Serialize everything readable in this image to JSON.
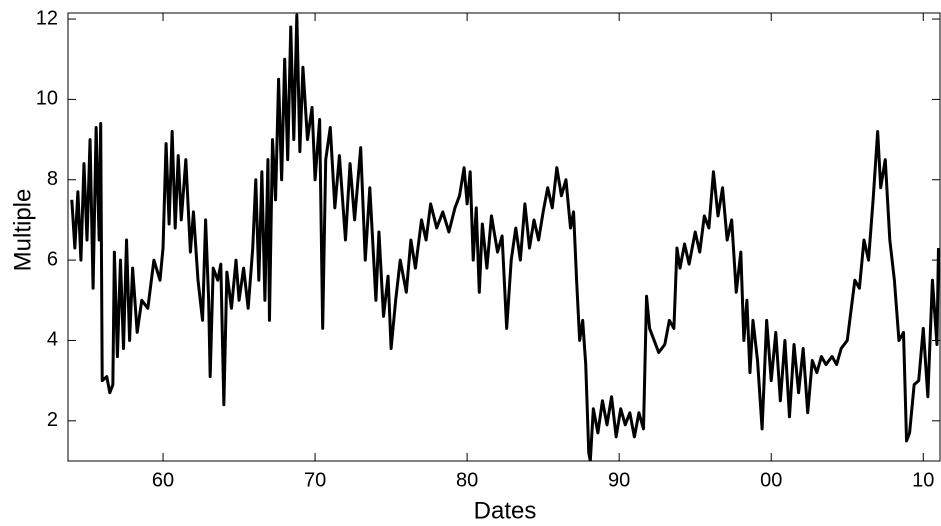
{
  "chart_data": {
    "type": "line",
    "x_label": "Dates",
    "y_label": "Multiple",
    "xlim": [
      1953.75,
      2011.1
    ],
    "ylim": [
      1,
      12.15
    ],
    "xticks": [
      {
        "value": 1960,
        "label": "60"
      },
      {
        "value": 1970,
        "label": "70"
      },
      {
        "value": 1980,
        "label": "80"
      },
      {
        "value": 1990,
        "label": "90"
      },
      {
        "value": 2000,
        "label": "00"
      },
      {
        "value": 2010,
        "label": "10"
      }
    ],
    "yticks": [
      2,
      4,
      6,
      8,
      10,
      12
    ],
    "grid": false,
    "series": [
      {
        "color": "#000000",
        "x": [
          1954.0,
          1954.2,
          1954.4,
          1954.6,
          1954.8,
          1955.0,
          1955.2,
          1955.4,
          1955.6,
          1955.8,
          1955.9,
          1956.0,
          1956.3,
          1956.5,
          1956.7,
          1956.8,
          1957.0,
          1957.2,
          1957.4,
          1957.6,
          1957.8,
          1958.0,
          1958.3,
          1958.6,
          1959.0,
          1959.4,
          1959.8,
          1960.0,
          1960.2,
          1960.4,
          1960.6,
          1960.8,
          1961.0,
          1961.2,
          1961.5,
          1961.8,
          1962.0,
          1962.3,
          1962.6,
          1962.8,
          1963.0,
          1963.1,
          1963.3,
          1963.6,
          1963.8,
          1964.0,
          1964.2,
          1964.5,
          1964.8,
          1965.0,
          1965.3,
          1965.6,
          1965.9,
          1966.1,
          1966.3,
          1966.5,
          1966.7,
          1966.9,
          1967.0,
          1967.2,
          1967.4,
          1967.6,
          1967.8,
          1968.0,
          1968.2,
          1968.4,
          1968.6,
          1968.8,
          1969.0,
          1969.2,
          1969.5,
          1969.8,
          1970.0,
          1970.3,
          1970.5,
          1970.7,
          1971.0,
          1971.3,
          1971.6,
          1972.0,
          1972.3,
          1972.6,
          1973.0,
          1973.3,
          1973.6,
          1974.0,
          1974.2,
          1974.5,
          1974.8,
          1975.0,
          1975.3,
          1975.6,
          1976.0,
          1976.3,
          1976.6,
          1977.0,
          1977.3,
          1977.6,
          1978.0,
          1978.4,
          1978.8,
          1979.2,
          1979.5,
          1979.8,
          1980.0,
          1980.2,
          1980.4,
          1980.6,
          1980.8,
          1981.0,
          1981.3,
          1981.6,
          1982.0,
          1982.3,
          1982.6,
          1982.9,
          1983.2,
          1983.5,
          1983.8,
          1984.1,
          1984.4,
          1984.7,
          1985.0,
          1985.3,
          1985.6,
          1985.9,
          1986.2,
          1986.5,
          1986.8,
          1987.0,
          1987.2,
          1987.4,
          1987.6,
          1987.8,
          1988.0,
          1988.1,
          1988.3,
          1988.6,
          1988.9,
          1989.2,
          1989.5,
          1989.8,
          1990.1,
          1990.4,
          1990.7,
          1991.0,
          1991.3,
          1991.6,
          1991.8,
          1992.0,
          1992.3,
          1992.6,
          1993.0,
          1993.3,
          1993.6,
          1993.8,
          1994.0,
          1994.3,
          1994.6,
          1995.0,
          1995.3,
          1995.6,
          1995.9,
          1996.2,
          1996.5,
          1996.8,
          1997.1,
          1997.4,
          1997.7,
          1998.0,
          1998.2,
          1998.4,
          1998.6,
          1998.8,
          1999.1,
          1999.4,
          1999.7,
          2000.0,
          2000.3,
          2000.6,
          2000.9,
          2001.2,
          2001.5,
          2001.8,
          2002.1,
          2002.4,
          2002.7,
          2003.0,
          2003.3,
          2003.6,
          2004.0,
          2004.3,
          2004.6,
          2005.0,
          2005.2,
          2005.5,
          2005.8,
          2006.1,
          2006.4,
          2006.7,
          2007.0,
          2007.2,
          2007.5,
          2007.8,
          2008.1,
          2008.4,
          2008.7,
          2008.9,
          2009.1,
          2009.4,
          2009.7,
          2010.0,
          2010.3,
          2010.6,
          2010.9,
          2011.0
        ],
        "values": [
          7.5,
          6.3,
          7.7,
          6.0,
          8.4,
          6.5,
          9.0,
          5.3,
          9.3,
          6.5,
          9.4,
          3.0,
          3.1,
          2.7,
          2.9,
          6.2,
          3.6,
          6.0,
          3.8,
          6.5,
          4.0,
          5.8,
          4.2,
          5.0,
          4.8,
          6.0,
          5.5,
          6.3,
          8.9,
          6.9,
          9.2,
          6.8,
          8.6,
          7.0,
          8.5,
          6.2,
          7.2,
          5.5,
          4.5,
          7.0,
          5.0,
          3.1,
          5.8,
          5.5,
          5.9,
          2.4,
          5.7,
          4.8,
          6.0,
          5.0,
          5.8,
          4.8,
          6.3,
          8.0,
          5.5,
          8.2,
          5.0,
          8.5,
          4.5,
          9.0,
          7.5,
          10.5,
          8.0,
          11.0,
          8.5,
          11.8,
          9.0,
          12.1,
          8.7,
          10.8,
          9.0,
          9.8,
          8.0,
          9.5,
          4.3,
          8.5,
          9.3,
          7.3,
          8.6,
          6.5,
          8.4,
          7.0,
          8.8,
          6.0,
          7.8,
          5.0,
          6.7,
          4.6,
          5.6,
          3.8,
          5.0,
          6.0,
          5.2,
          6.5,
          5.8,
          7.0,
          6.5,
          7.4,
          6.8,
          7.2,
          6.7,
          7.3,
          7.6,
          8.3,
          7.4,
          8.2,
          6.0,
          7.3,
          5.2,
          6.9,
          5.8,
          7.1,
          6.2,
          6.6,
          4.3,
          6.0,
          6.8,
          6.0,
          7.4,
          6.3,
          7.0,
          6.5,
          7.2,
          7.8,
          7.3,
          8.3,
          7.6,
          8.0,
          6.8,
          7.2,
          5.5,
          4.0,
          4.5,
          3.4,
          1.2,
          1.0,
          2.3,
          1.7,
          2.5,
          1.9,
          2.6,
          1.6,
          2.3,
          1.9,
          2.2,
          1.6,
          2.2,
          1.8,
          5.1,
          4.3,
          4.0,
          3.7,
          3.9,
          4.5,
          4.3,
          6.3,
          5.8,
          6.4,
          5.9,
          6.7,
          6.2,
          7.1,
          6.8,
          8.2,
          7.1,
          7.8,
          6.5,
          7.0,
          5.2,
          6.2,
          4.0,
          5.0,
          3.2,
          4.5,
          3.5,
          1.8,
          4.5,
          3.0,
          4.2,
          2.5,
          4.0,
          2.1,
          3.9,
          2.7,
          3.8,
          2.2,
          3.5,
          3.2,
          3.6,
          3.4,
          3.6,
          3.4,
          3.8,
          4.0,
          4.6,
          5.5,
          5.3,
          6.5,
          6.0,
          7.5,
          9.2,
          7.8,
          8.5,
          6.5,
          5.5,
          4.0,
          4.2,
          1.5,
          1.7,
          2.9,
          3.0,
          4.3,
          2.6,
          5.5,
          3.9,
          6.3
        ]
      }
    ]
  }
}
